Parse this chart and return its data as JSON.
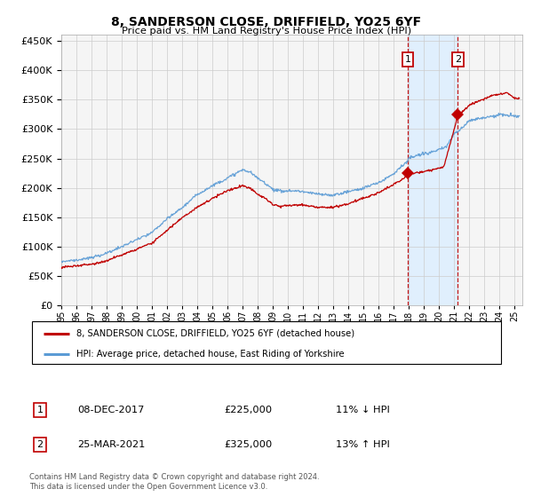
{
  "title1": "8, SANDERSON CLOSE, DRIFFIELD, YO25 6YF",
  "title2": "Price paid vs. HM Land Registry's House Price Index (HPI)",
  "background_color": "#ffffff",
  "plot_bg_color": "#f5f5f5",
  "grid_color": "#cccccc",
  "hpi_color": "#5b9bd5",
  "price_color": "#c00000",
  "highlight_bg": "#ddeeff",
  "marker1_date": 2017.92,
  "marker1_price": 225000,
  "marker2_date": 2021.23,
  "marker2_price": 325000,
  "legend_line1": "8, SANDERSON CLOSE, DRIFFIELD, YO25 6YF (detached house)",
  "legend_line2": "HPI: Average price, detached house, East Riding of Yorkshire",
  "table_row1_date": "08-DEC-2017",
  "table_row1_price": "£225,000",
  "table_row1_hpi": "11% ↓ HPI",
  "table_row2_date": "25-MAR-2021",
  "table_row2_price": "£325,000",
  "table_row2_hpi": "13% ↑ HPI",
  "footnote": "Contains HM Land Registry data © Crown copyright and database right 2024.\nThis data is licensed under the Open Government Licence v3.0.",
  "ylim_min": 0,
  "ylim_max": 460000,
  "xmin": 1995,
  "xmax": 2025.5
}
